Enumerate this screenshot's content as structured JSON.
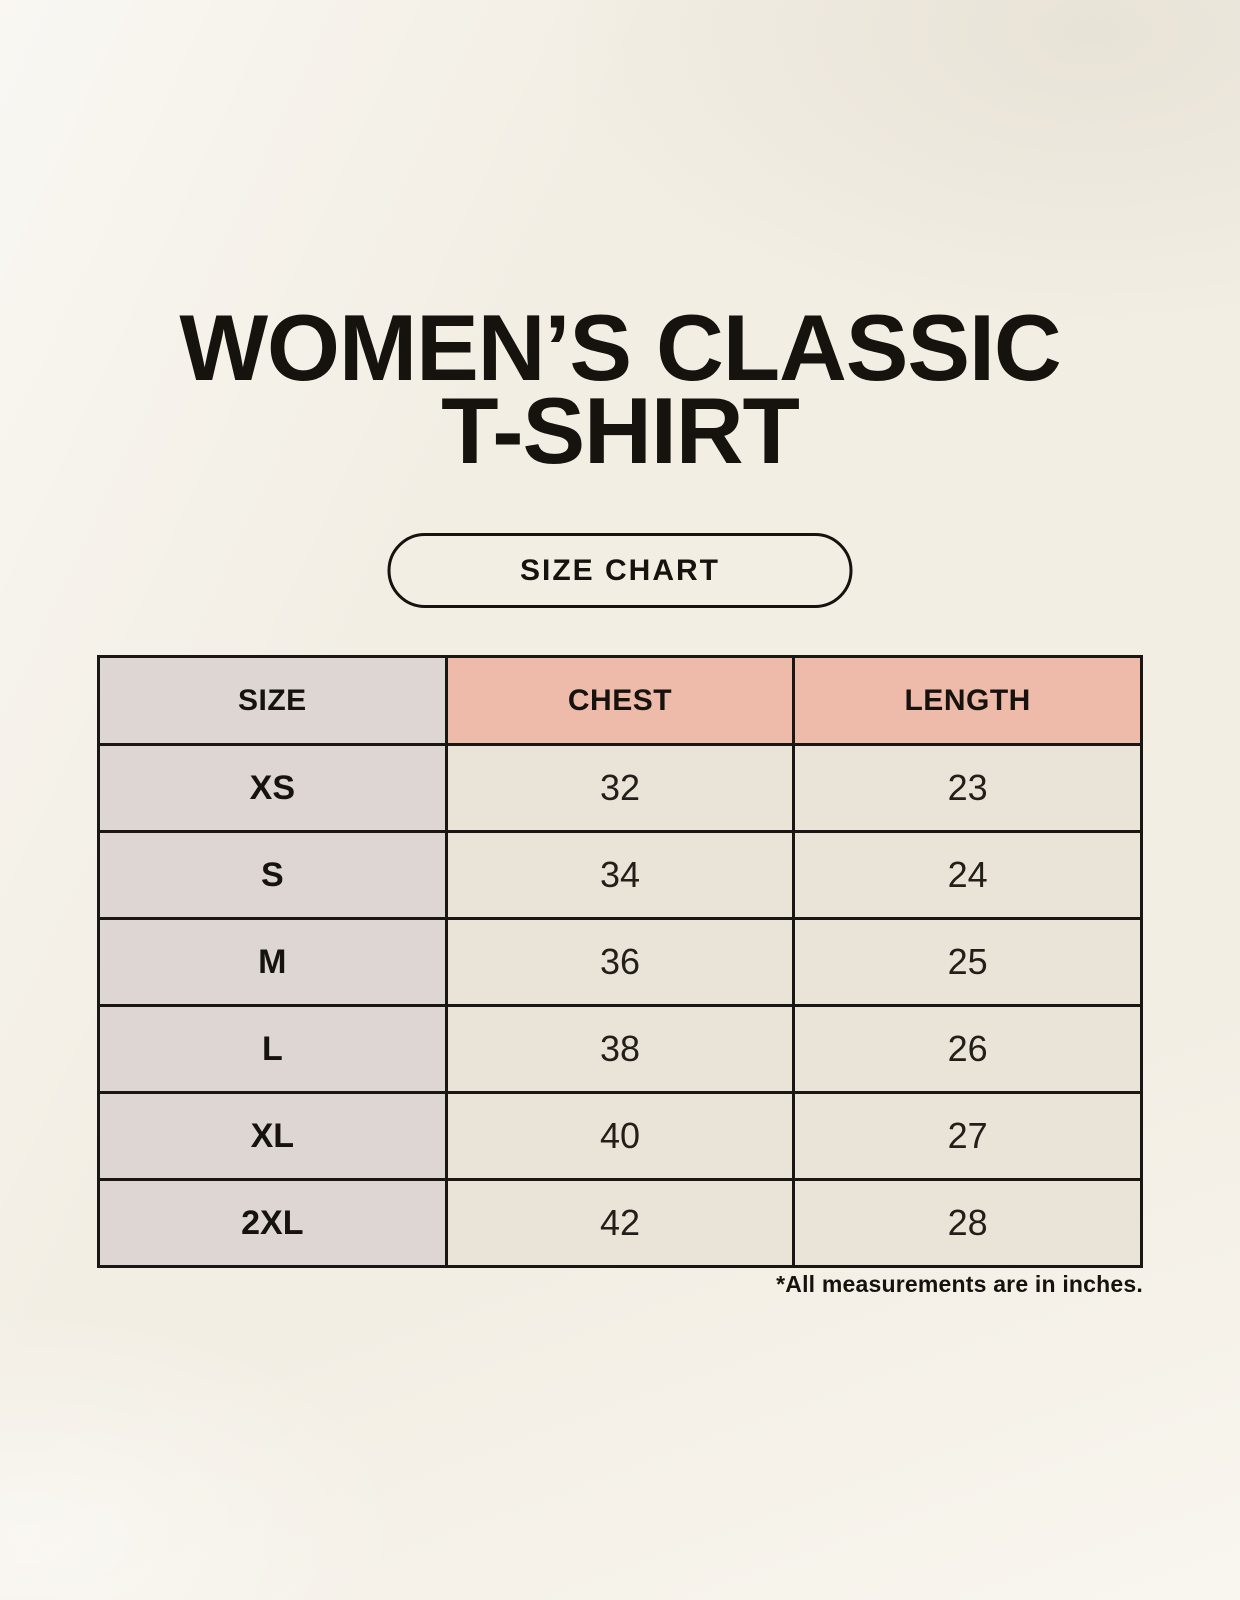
{
  "header": {
    "title_line1": "WOMEN’S CLASSIC",
    "title_line2": "T-SHIRT",
    "badge_label": "SIZE CHART"
  },
  "table": {
    "headers": [
      "SIZE",
      "CHEST",
      "LENGTH"
    ],
    "rows": [
      [
        "XS",
        "32",
        "23"
      ],
      [
        "S",
        "34",
        "24"
      ],
      [
        "M",
        "36",
        "25"
      ],
      [
        "L",
        "38",
        "26"
      ],
      [
        "XL",
        "40",
        "27"
      ],
      [
        "2XL",
        "42",
        "28"
      ]
    ]
  },
  "footnote": "*All measurements are in inches.",
  "colors": {
    "background": "#f7f3ea",
    "table_border": "#1a1613",
    "size_column_fill": "#ddd6d2",
    "accent_header_fill": "#eebaa9",
    "cell_fill": "#eae3d8",
    "text": "#1b1713"
  },
  "chart_data": {
    "type": "table",
    "title": "WOMEN’S CLASSIC T-SHIRT",
    "subtitle": "SIZE CHART",
    "columns": [
      "SIZE",
      "CHEST",
      "LENGTH"
    ],
    "categories": [
      "XS",
      "S",
      "M",
      "L",
      "XL",
      "2XL"
    ],
    "series": [
      {
        "name": "CHEST",
        "values": [
          32,
          34,
          36,
          38,
          40,
          42
        ]
      },
      {
        "name": "LENGTH",
        "values": [
          23,
          24,
          25,
          26,
          27,
          28
        ]
      }
    ],
    "units": "inches",
    "note": "*All measurements are in inches."
  }
}
